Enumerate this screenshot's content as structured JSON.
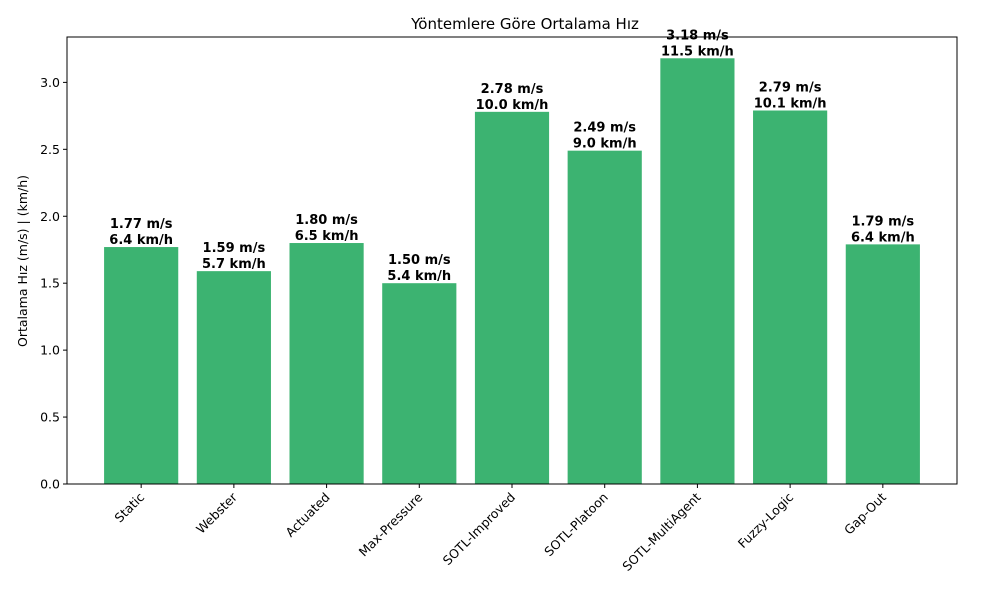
{
  "chart_data": {
    "type": "bar",
    "title": "Yöntemlere Göre Ortalama Hız",
    "ylabel": "Ortalama Hız (m/s) | (km/h)",
    "xlabel": "",
    "categories": [
      "Static",
      "Webster",
      "Actuated",
      "Max-Pressure",
      "SOTL-Improved",
      "SOTL-Platoon",
      "SOTL-MultiAgent",
      "Fuzzy-Logic",
      "Gap-Out"
    ],
    "values": [
      1.77,
      1.59,
      1.8,
      1.5,
      2.78,
      2.49,
      3.18,
      2.79,
      1.79
    ],
    "labels_ms": [
      "1.77 m/s",
      "1.59 m/s",
      "1.80 m/s",
      "1.50 m/s",
      "2.78 m/s",
      "2.49 m/s",
      "3.18 m/s",
      "2.79 m/s",
      "1.79 m/s"
    ],
    "labels_kmh": [
      "6.4 km/h",
      "5.7 km/h",
      "6.5 km/h",
      "5.4 km/h",
      "10.0 km/h",
      "9.0 km/h",
      "11.5 km/h",
      "10.1 km/h",
      "6.4 km/h"
    ],
    "ylim": [
      0,
      3.339
    ],
    "yticks": [
      "0.0",
      "0.5",
      "1.0",
      "1.5",
      "2.0",
      "2.5",
      "3.0"
    ],
    "bar_color": "#3cb371",
    "grid": false
  }
}
